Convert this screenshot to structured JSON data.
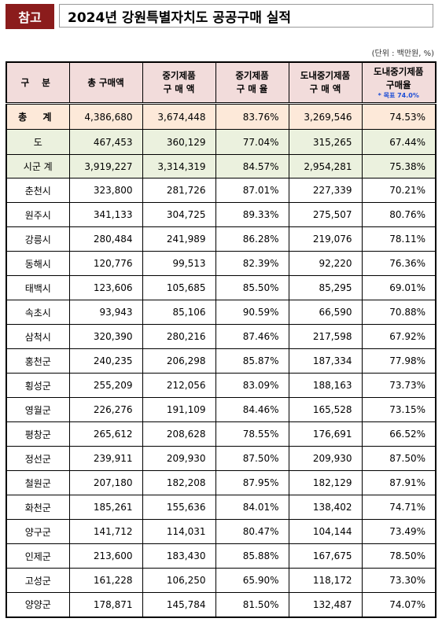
{
  "header": {
    "badge": "참고",
    "title": "2024년 강원특별자치도 공공구매 실적"
  },
  "unit": "(단위 : 백만원, %)",
  "table": {
    "columns": [
      [
        "구 분"
      ],
      [
        "총 구매액"
      ],
      [
        "중기제품",
        "구 매 액"
      ],
      [
        "중기제품",
        "구 매 율"
      ],
      [
        "도내중기제품",
        "구 매 액"
      ],
      [
        "도내중기제품",
        "구매율"
      ]
    ],
    "target_note": "* 목표 74.0%",
    "rows": [
      [
        "총 계",
        "4,386,680",
        "3,674,448",
        "83.76%",
        "3,269,546",
        "74.53%"
      ],
      [
        "도",
        "467,453",
        "360,129",
        "77.04%",
        "315,265",
        "67.44%"
      ],
      [
        "시군 계",
        "3,919,227",
        "3,314,319",
        "84.57%",
        "2,954,281",
        "75.38%"
      ],
      [
        "춘천시",
        "323,800",
        "281,726",
        "87.01%",
        "227,339",
        "70.21%"
      ],
      [
        "원주시",
        "341,133",
        "304,725",
        "89.33%",
        "275,507",
        "80.76%"
      ],
      [
        "강릉시",
        "280,484",
        "241,989",
        "86.28%",
        "219,076",
        "78.11%"
      ],
      [
        "동해시",
        "120,776",
        "99,513",
        "82.39%",
        "92,220",
        "76.36%"
      ],
      [
        "태백시",
        "123,606",
        "105,685",
        "85.50%",
        "85,295",
        "69.01%"
      ],
      [
        "속초시",
        "93,943",
        "85,106",
        "90.59%",
        "66,590",
        "70.88%"
      ],
      [
        "삼척시",
        "320,390",
        "280,216",
        "87.46%",
        "217,598",
        "67.92%"
      ],
      [
        "홍천군",
        "240,235",
        "206,298",
        "85.87%",
        "187,334",
        "77.98%"
      ],
      [
        "횡성군",
        "255,209",
        "212,056",
        "83.09%",
        "188,163",
        "73.73%"
      ],
      [
        "영월군",
        "226,276",
        "191,109",
        "84.46%",
        "165,528",
        "73.15%"
      ],
      [
        "평창군",
        "265,612",
        "208,628",
        "78.55%",
        "176,691",
        "66.52%"
      ],
      [
        "정선군",
        "239,911",
        "209,930",
        "87.50%",
        "209,930",
        "87.50%"
      ],
      [
        "철원군",
        "207,180",
        "182,208",
        "87.95%",
        "182,129",
        "87.91%"
      ],
      [
        "화천군",
        "185,261",
        "155,636",
        "84.01%",
        "138,402",
        "74.71%"
      ],
      [
        "양구군",
        "141,712",
        "114,031",
        "80.47%",
        "104,144",
        "73.49%"
      ],
      [
        "인제군",
        "213,600",
        "183,430",
        "85.88%",
        "167,675",
        "78.50%"
      ],
      [
        "고성군",
        "161,228",
        "106,250",
        "65.90%",
        "118,172",
        "73.30%"
      ],
      [
        "양양군",
        "178,871",
        "145,784",
        "81.50%",
        "132,487",
        "74.07%"
      ]
    ]
  }
}
